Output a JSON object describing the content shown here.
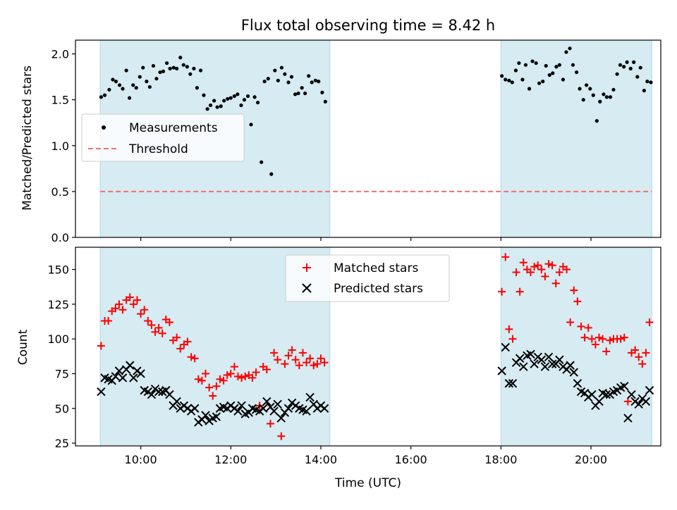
{
  "title": "Flux total observing time = 8.42 h",
  "chart_data": [
    {
      "type": "scatter",
      "ylabel": "Matched/Predicted stars",
      "xlim": [
        8.55,
        21.55
      ],
      "ylim": [
        0,
        2.15
      ],
      "yticks": [
        0.0,
        0.5,
        1.0,
        1.5,
        2.0
      ],
      "ytick_labels": [
        "0.0",
        "0.5",
        "1.0",
        "1.5",
        "2.0"
      ],
      "xticks": [
        10,
        12,
        14,
        16,
        18,
        20
      ],
      "observing_windows": [
        [
          9.1,
          14.2
        ],
        [
          18.0,
          21.35
        ]
      ],
      "legend": {
        "placement": "center-left",
        "entries": [
          "Measurements",
          "Threshold"
        ]
      },
      "series": [
        {
          "name": "Measurements",
          "color": "#000000",
          "x": [
            9.12,
            9.2,
            9.3,
            9.38,
            9.45,
            9.53,
            9.6,
            9.68,
            9.75,
            9.83,
            9.9,
            9.98,
            10.05,
            10.13,
            10.2,
            10.28,
            10.35,
            10.43,
            10.5,
            10.58,
            10.65,
            10.73,
            10.8,
            10.88,
            10.95,
            11.03,
            11.1,
            11.18,
            11.25,
            11.33,
            11.4,
            11.48,
            11.55,
            11.63,
            11.7,
            11.78,
            11.85,
            11.93,
            12.0,
            12.08,
            12.15,
            12.23,
            12.3,
            12.38,
            12.45,
            12.53,
            12.6,
            12.68,
            12.75,
            12.83,
            12.9,
            12.98,
            13.05,
            13.13,
            13.2,
            13.28,
            13.35,
            13.43,
            13.5,
            13.58,
            13.65,
            13.73,
            13.8,
            13.88,
            13.95,
            14.03,
            14.1,
            18.02,
            18.1,
            18.18,
            18.25,
            18.33,
            18.4,
            18.48,
            18.55,
            18.63,
            18.7,
            18.78,
            18.85,
            18.93,
            19.0,
            19.08,
            19.15,
            19.23,
            19.3,
            19.38,
            19.45,
            19.53,
            19.6,
            19.68,
            19.75,
            19.83,
            19.9,
            19.98,
            20.05,
            20.13,
            20.2,
            20.28,
            20.35,
            20.43,
            20.5,
            20.58,
            20.65,
            20.73,
            20.8,
            20.88,
            20.95,
            21.03,
            21.1,
            21.18,
            21.25,
            21.33
          ],
          "y": [
            1.53,
            1.55,
            1.61,
            1.72,
            1.7,
            1.66,
            1.62,
            1.82,
            1.52,
            1.66,
            1.63,
            1.75,
            1.85,
            1.7,
            1.64,
            1.87,
            1.73,
            1.8,
            1.81,
            1.9,
            1.84,
            1.85,
            1.84,
            1.96,
            1.88,
            1.86,
            1.78,
            1.84,
            1.63,
            1.82,
            1.55,
            1.4,
            1.44,
            1.49,
            1.42,
            1.43,
            1.49,
            1.51,
            1.52,
            1.54,
            1.56,
            1.44,
            1.5,
            1.54,
            1.23,
            1.53,
            1.47,
            0.82,
            1.7,
            1.73,
            0.69,
            1.82,
            1.71,
            1.85,
            1.78,
            1.69,
            1.75,
            1.56,
            1.57,
            1.63,
            1.57,
            1.76,
            1.69,
            1.71,
            1.7,
            1.58,
            1.48,
            1.76,
            1.72,
            1.71,
            1.69,
            1.82,
            1.9,
            1.72,
            1.88,
            1.62,
            1.92,
            1.9,
            1.68,
            1.7,
            1.87,
            1.77,
            1.79,
            1.86,
            1.88,
            1.72,
            2.02,
            2.06,
            1.88,
            1.8,
            1.62,
            1.5,
            1.66,
            1.62,
            1.55,
            1.27,
            1.48,
            1.56,
            1.53,
            1.53,
            1.61,
            1.78,
            1.88,
            1.86,
            1.91,
            1.84,
            1.91,
            1.75,
            1.85,
            1.6,
            1.7,
            1.69
          ],
          "marker": "dot"
        },
        {
          "name": "Threshold",
          "color": "#f07070",
          "x": [
            9.1,
            21.35
          ],
          "y": [
            0.5,
            0.5
          ],
          "style": "dashed"
        }
      ]
    },
    {
      "type": "scatter",
      "xlabel": "Time (UTC)",
      "ylabel": "Count",
      "xlim": [
        8.55,
        21.55
      ],
      "ylim": [
        23,
        166
      ],
      "yticks": [
        25,
        50,
        75,
        100,
        125,
        150
      ],
      "ytick_labels": [
        "25",
        "50",
        "75",
        "100",
        "125",
        "150"
      ],
      "xticks": [
        10,
        12,
        14,
        16,
        18,
        20
      ],
      "xtick_labels": [
        "10:00",
        "12:00",
        "14:00",
        "16:00",
        "18:00",
        "20:00"
      ],
      "observing_windows": [
        [
          9.1,
          14.2
        ],
        [
          18.0,
          21.35
        ]
      ],
      "legend": {
        "placement": "upper-center",
        "entries": [
          "Matched stars",
          "Predicted stars"
        ]
      },
      "series": [
        {
          "name": "Matched stars",
          "color": "#ff0000",
          "marker": "+",
          "x": [
            9.12,
            9.2,
            9.28,
            9.36,
            9.44,
            9.52,
            9.6,
            9.68,
            9.76,
            9.84,
            9.92,
            10.0,
            10.08,
            10.16,
            10.24,
            10.32,
            10.4,
            10.48,
            10.56,
            10.64,
            10.72,
            10.8,
            10.88,
            10.96,
            11.04,
            11.12,
            11.2,
            11.28,
            11.36,
            11.44,
            11.52,
            11.6,
            11.68,
            11.76,
            11.84,
            11.92,
            12.0,
            12.08,
            12.16,
            12.24,
            12.32,
            12.4,
            12.48,
            12.56,
            12.64,
            12.72,
            12.8,
            12.88,
            12.96,
            13.04,
            13.12,
            13.2,
            13.28,
            13.36,
            13.44,
            13.52,
            13.6,
            13.68,
            13.76,
            13.84,
            13.92,
            14.0,
            14.08,
            18.02,
            18.1,
            18.18,
            18.26,
            18.34,
            18.42,
            18.5,
            18.58,
            18.66,
            18.74,
            18.82,
            18.9,
            18.98,
            19.06,
            19.14,
            19.22,
            19.3,
            19.38,
            19.46,
            19.54,
            19.62,
            19.7,
            19.78,
            19.86,
            19.94,
            20.02,
            20.1,
            20.18,
            20.26,
            20.34,
            20.42,
            20.5,
            20.58,
            20.66,
            20.74,
            20.82,
            20.9,
            20.98,
            21.06,
            21.14,
            21.22,
            21.3
          ],
          "y": [
            95,
            113,
            113,
            120,
            122,
            125,
            121,
            128,
            130,
            125,
            128,
            118,
            121,
            113,
            110,
            105,
            108,
            104,
            114,
            112,
            99,
            101,
            93,
            96,
            98,
            87,
            86,
            71,
            70,
            75,
            65,
            59,
            66,
            71,
            70,
            74,
            75,
            80,
            73,
            72,
            73,
            74,
            72,
            76,
            52,
            80,
            78,
            39,
            90,
            85,
            30,
            82,
            88,
            92,
            85,
            81,
            90,
            83,
            86,
            81,
            82,
            86,
            83,
            134,
            159,
            107,
            100,
            148,
            134,
            155,
            150,
            148,
            152,
            153,
            150,
            145,
            154,
            153,
            140,
            148,
            152,
            150,
            112,
            135,
            127,
            109,
            101,
            108,
            100,
            96,
            101,
            100,
            91,
            99,
            100,
            100,
            100,
            101,
            55,
            90,
            92,
            87,
            82,
            90,
            112
          ]
        },
        {
          "name": "Predicted stars",
          "color": "#000000",
          "marker": "x",
          "x": [
            9.12,
            9.2,
            9.28,
            9.36,
            9.44,
            9.52,
            9.6,
            9.68,
            9.76,
            9.84,
            9.92,
            10.0,
            10.08,
            10.16,
            10.24,
            10.32,
            10.4,
            10.48,
            10.56,
            10.64,
            10.72,
            10.8,
            10.88,
            10.96,
            11.04,
            11.12,
            11.2,
            11.28,
            11.36,
            11.44,
            11.52,
            11.6,
            11.68,
            11.76,
            11.84,
            11.92,
            12.0,
            12.08,
            12.16,
            12.24,
            12.32,
            12.4,
            12.48,
            12.56,
            12.64,
            12.72,
            12.8,
            12.88,
            12.96,
            13.04,
            13.12,
            13.2,
            13.28,
            13.36,
            13.44,
            13.52,
            13.6,
            13.68,
            13.76,
            13.84,
            13.92,
            14.0,
            14.08,
            18.02,
            18.1,
            18.18,
            18.26,
            18.34,
            18.42,
            18.5,
            18.58,
            18.66,
            18.74,
            18.82,
            18.9,
            18.98,
            19.06,
            19.14,
            19.22,
            19.3,
            19.38,
            19.46,
            19.54,
            19.62,
            19.7,
            19.78,
            19.86,
            19.94,
            20.02,
            20.1,
            20.18,
            20.26,
            20.34,
            20.42,
            20.5,
            20.58,
            20.66,
            20.74,
            20.82,
            20.9,
            20.98,
            21.06,
            21.14,
            21.22,
            21.3
          ],
          "y": [
            62,
            72,
            71,
            70,
            73,
            77,
            72,
            78,
            81,
            72,
            77,
            75,
            63,
            62,
            60,
            64,
            62,
            62,
            63,
            60,
            52,
            55,
            50,
            52,
            50,
            48,
            50,
            40,
            42,
            45,
            41,
            43,
            44,
            50,
            51,
            50,
            52,
            50,
            48,
            52,
            46,
            47,
            50,
            49,
            48,
            50,
            55,
            51,
            48,
            53,
            43,
            47,
            50,
            54,
            52,
            50,
            49,
            48,
            58,
            53,
            50,
            52,
            50,
            77,
            94,
            68,
            68,
            83,
            86,
            80,
            88,
            89,
            82,
            87,
            85,
            80,
            87,
            82,
            82,
            85,
            80,
            78,
            81,
            76,
            68,
            62,
            61,
            58,
            60,
            52,
            55,
            61,
            60,
            60,
            62,
            63,
            65,
            66,
            43,
            60,
            55,
            53,
            57,
            55,
            63
          ]
        }
      ]
    }
  ]
}
